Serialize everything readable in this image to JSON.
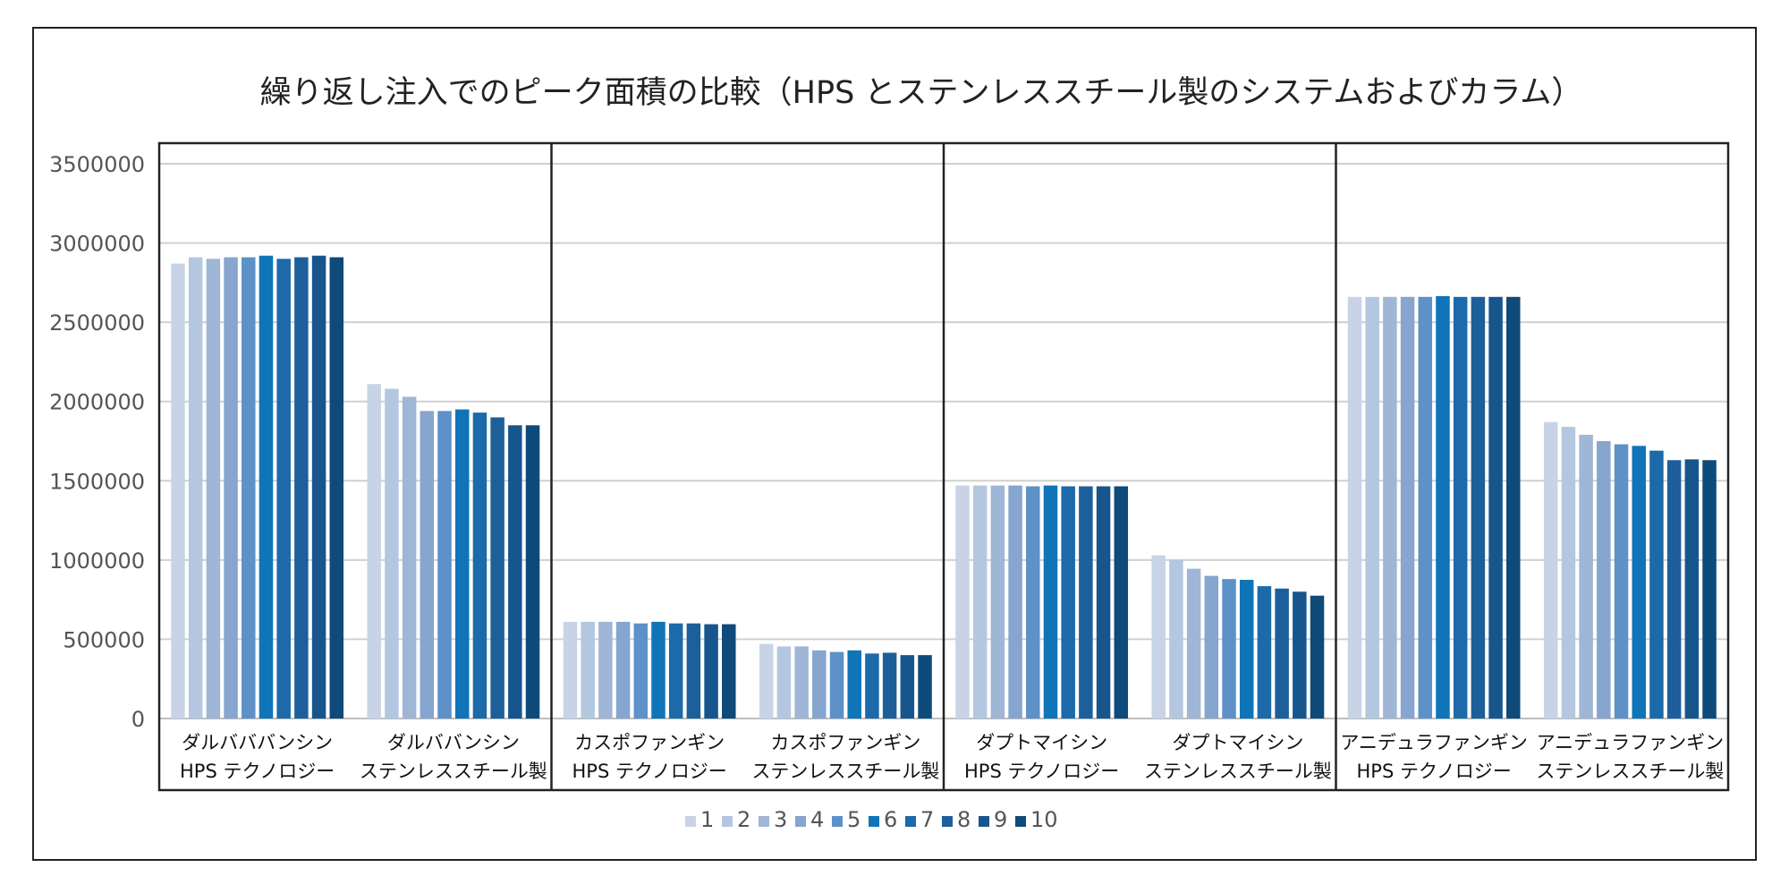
{
  "chart_data": {
    "type": "bar",
    "title": "繰り返し注入でのピーク面積の比較（HPS とステンレススチール製のシステムおよびカラム）",
    "categories": [
      [
        "ダルバババンシン",
        "HPS テクノロジー"
      ],
      [
        "ダルババンシン",
        "ステンレススチール製"
      ],
      [
        "カスポファンギン",
        "HPS テクノロジー"
      ],
      [
        "カスポファンギン",
        "ステンレススチール製"
      ],
      [
        "ダプトマイシン",
        "HPS テクノロジー"
      ],
      [
        "ダプトマイシン",
        "ステンレススチール製"
      ],
      [
        "アニデュラファンギン",
        "HPS テクノロジー"
      ],
      [
        "アニデュラファンギン",
        "ステンレススチール製"
      ]
    ],
    "ylim": [
      0,
      3500000
    ],
    "yticks": [
      "0",
      "500000",
      "1000000",
      "1500000",
      "2000000",
      "2500000",
      "3000000",
      "3500000"
    ],
    "grid": true,
    "legend_position": "bottom",
    "colors": [
      "#c8d4e6",
      "#b4c7e0",
      "#9fb6d6",
      "#86a5cf",
      "#5d91c8",
      "#0f74b8",
      "#1c6aaa",
      "#1d5f9b",
      "#17568d",
      "#0e4a7a"
    ],
    "series": [
      {
        "name": "1",
        "values": [
          2870000,
          2110000,
          610000,
          470000,
          1470000,
          1030000,
          2660000,
          1870000
        ]
      },
      {
        "name": "2",
        "values": [
          2910000,
          2080000,
          610000,
          455000,
          1470000,
          1000000,
          2660000,
          1840000
        ]
      },
      {
        "name": "3",
        "values": [
          2900000,
          2030000,
          610000,
          455000,
          1470000,
          945000,
          2660000,
          1790000
        ]
      },
      {
        "name": "4",
        "values": [
          2910000,
          1940000,
          610000,
          430000,
          1470000,
          900000,
          2660000,
          1750000
        ]
      },
      {
        "name": "5",
        "values": [
          2910000,
          1940000,
          600000,
          420000,
          1465000,
          880000,
          2660000,
          1730000
        ]
      },
      {
        "name": "6",
        "values": [
          2920000,
          1950000,
          610000,
          430000,
          1470000,
          875000,
          2665000,
          1720000
        ]
      },
      {
        "name": "7",
        "values": [
          2900000,
          1930000,
          600000,
          410000,
          1465000,
          835000,
          2660000,
          1690000
        ]
      },
      {
        "name": "8",
        "values": [
          2910000,
          1900000,
          600000,
          415000,
          1465000,
          820000,
          2660000,
          1630000
        ]
      },
      {
        "name": "9",
        "values": [
          2920000,
          1850000,
          595000,
          400000,
          1465000,
          800000,
          2660000,
          1635000
        ]
      },
      {
        "name": "10",
        "values": [
          2910000,
          1850000,
          595000,
          400000,
          1465000,
          775000,
          2660000,
          1630000
        ]
      }
    ]
  }
}
